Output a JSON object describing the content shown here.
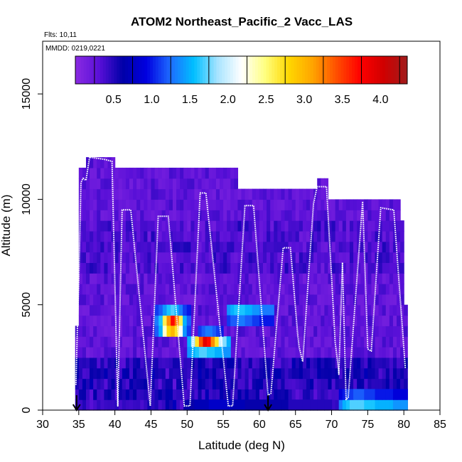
{
  "chart_data": {
    "type": "heatmap",
    "title": "ATOM2 Northeast_Pacific_2 Vacc_LAS",
    "flights_text": "Flts: 10,11",
    "mmdd_text": "MMDD: 0219,0221",
    "xlabel": "Latitude (deg N)",
    "ylabel": "Altitude (m)",
    "xlim": [
      30,
      85
    ],
    "ylim": [
      0,
      17500
    ],
    "xticks": [
      30,
      35,
      40,
      45,
      50,
      55,
      60,
      65,
      70,
      75,
      80,
      85
    ],
    "yticks": [
      0,
      5000,
      10000,
      15000
    ],
    "colorbar": {
      "range": [
        0,
        4.35
      ],
      "ticks": [
        0.5,
        1.0,
        1.5,
        2.0,
        2.5,
        3.0,
        3.5,
        4.0
      ],
      "tick_labels": [
        "0.5",
        "1.0",
        "1.5",
        "2.0",
        "2.5",
        "3.0",
        "3.5",
        "4.0"
      ],
      "colors": [
        "#8a2be2",
        "#5a10d8",
        "#0000a8",
        "#0000e0",
        "#1e6bff",
        "#00bfff",
        "#a8e4ff",
        "#ffffff",
        "#ffff80",
        "#ffd700",
        "#ffa500",
        "#ff5000",
        "#ff0000",
        "#d00000",
        "#a01c1c"
      ]
    },
    "lat_columns": [
      {
        "lat0": 34.5,
        "lat1": 35.0,
        "alt_top": 4000
      },
      {
        "lat0": 35.0,
        "lat1": 36.0,
        "alt_top": 11500
      },
      {
        "lat0": 36.0,
        "lat1": 40.0,
        "alt_top": 12000
      },
      {
        "lat0": 40.0,
        "lat1": 44.0,
        "alt_top": 11500
      },
      {
        "lat0": 44.0,
        "lat1": 57.0,
        "alt_top": 11500
      },
      {
        "lat0": 57.0,
        "lat1": 68.0,
        "alt_top": 10500
      },
      {
        "lat0": 68.0,
        "lat1": 69.5,
        "alt_top": 10700
      },
      {
        "lat0": 69.5,
        "lat1": 74.0,
        "alt_top": 10000
      },
      {
        "lat0": 74.0,
        "lat1": 79.5,
        "alt_top": 10000
      },
      {
        "lat0": 79.5,
        "lat1": 80.0,
        "alt_top": 9000
      },
      {
        "lat0": 80.0,
        "lat1": 80.5,
        "alt_top": 5000
      }
    ],
    "high_value_patches": [
      {
        "lat0": 45.5,
        "lat1": 50.5,
        "alt0": 4000,
        "alt1": 4500,
        "values": [
          1.3,
          1.6,
          2.6,
          3.2,
          3.7,
          3.3,
          2.6,
          1.5,
          1.2
        ]
      },
      {
        "lat0": 45.5,
        "lat1": 50.5,
        "alt0": 3500,
        "alt1": 4000,
        "values": [
          1.2,
          1.5,
          2.3,
          2.8,
          3.0,
          2.7,
          2.2,
          1.4,
          1.1
        ]
      },
      {
        "lat0": 45.5,
        "lat1": 50.5,
        "alt0": 4500,
        "alt1": 5000,
        "values": [
          1.1,
          1.2,
          1.4,
          1.6,
          1.7,
          1.5,
          1.3,
          1.1,
          1.0
        ]
      },
      {
        "lat0": 50.0,
        "lat1": 56.0,
        "alt0": 3000,
        "alt1": 3500,
        "values": [
          1.5,
          1.9,
          2.7,
          3.4,
          3.9,
          3.7,
          3.2,
          2.7,
          2.0,
          1.8,
          1.5
        ]
      },
      {
        "lat0": 50.0,
        "lat1": 56.0,
        "alt0": 2500,
        "alt1": 3000,
        "values": [
          1.4,
          1.5,
          1.6,
          1.7,
          1.7,
          1.6,
          1.6,
          1.5,
          1.5,
          1.4,
          1.4
        ]
      },
      {
        "lat0": 51.5,
        "lat1": 55.0,
        "alt0": 3500,
        "alt1": 4000,
        "values": [
          1.1,
          1.2,
          1.3,
          1.3,
          1.2,
          1.1,
          1.0
        ]
      },
      {
        "lat0": 55.5,
        "lat1": 62.0,
        "alt0": 4500,
        "alt1": 5000,
        "values": [
          1.4,
          1.5,
          1.6,
          1.6,
          1.6,
          1.5,
          1.5,
          1.4,
          1.4,
          1.3,
          1.3,
          1.3,
          1.3
        ]
      },
      {
        "lat0": 55.5,
        "lat1": 62.0,
        "alt0": 4000,
        "alt1": 4500,
        "values": [
          1.1,
          1.2,
          1.2,
          1.3,
          1.3,
          1.2,
          1.2,
          1.1,
          1.1,
          1.0,
          1.0,
          1.0,
          1.0
        ]
      },
      {
        "lat0": 71.0,
        "lat1": 80.5,
        "alt0": 0,
        "alt1": 500,
        "values": [
          1.3,
          1.5,
          1.6,
          1.7,
          1.7,
          1.7,
          1.7,
          1.6,
          1.6,
          1.6,
          1.5,
          1.5,
          1.5,
          1.5,
          1.5,
          1.4,
          1.4,
          1.4,
          1.4
        ]
      },
      {
        "lat0": 71.0,
        "lat1": 80.5,
        "alt0": 500,
        "alt1": 1000,
        "values": [
          0.9,
          1.0,
          1.1,
          1.1,
          1.2,
          1.2,
          1.2,
          1.1,
          1.1,
          1.1,
          1.0,
          1.0,
          1.0,
          1.0,
          1.0,
          0.9,
          0.9,
          0.9,
          0.9
        ]
      },
      {
        "lat0": 50.0,
        "lat1": 70.0,
        "alt0": 0,
        "alt1": 500,
        "values": [
          0.6,
          0.7,
          0.7,
          0.8,
          0.8,
          0.8,
          0.7,
          0.7,
          0.6,
          0.6,
          0.6,
          0.6,
          0.6,
          0.6,
          0.5,
          0.5,
          0.5,
          0.5,
          0.5,
          0.5
        ]
      }
    ],
    "flight_track": [
      [
        34.6,
        1200
      ],
      [
        34.8,
        3800
      ],
      [
        35.0,
        6000
      ],
      [
        35.3,
        10800
      ],
      [
        35.6,
        11000
      ],
      [
        36.0,
        10900
      ],
      [
        36.5,
        12000
      ],
      [
        38.5,
        11900
      ],
      [
        39.6,
        11800
      ],
      [
        40.4,
        200
      ],
      [
        41.0,
        9500
      ],
      [
        42.2,
        9500
      ],
      [
        44.9,
        200
      ],
      [
        46.0,
        9200
      ],
      [
        47.4,
        9200
      ],
      [
        49.6,
        200
      ],
      [
        50.4,
        200
      ],
      [
        51.8,
        10300
      ],
      [
        52.6,
        10300
      ],
      [
        55.7,
        200
      ],
      [
        56.3,
        200
      ],
      [
        58.0,
        9700
      ],
      [
        59.2,
        9700
      ],
      [
        61.2,
        700
      ],
      [
        61.6,
        800
      ],
      [
        63.3,
        7700
      ],
      [
        64.3,
        7700
      ],
      [
        65.3,
        3600
      ],
      [
        65.5,
        3000
      ],
      [
        66.0,
        2300
      ],
      [
        67.5,
        9800
      ],
      [
        68.0,
        10600
      ],
      [
        69.3,
        10600
      ],
      [
        70.5,
        3200
      ],
      [
        70.9,
        2100
      ],
      [
        71.0,
        1700
      ],
      [
        71.5,
        7000
      ],
      [
        72.0,
        500
      ],
      [
        72.3,
        600
      ],
      [
        74.3,
        9900
      ],
      [
        75.0,
        2900
      ],
      [
        75.5,
        2800
      ],
      [
        76.8,
        9600
      ],
      [
        78.6,
        9500
      ],
      [
        80.2,
        2000
      ]
    ],
    "markers": [
      {
        "lat": 34.7,
        "symbol": "arrow-down"
      },
      {
        "lat": 61.2,
        "symbol": "arrow-down"
      }
    ]
  }
}
